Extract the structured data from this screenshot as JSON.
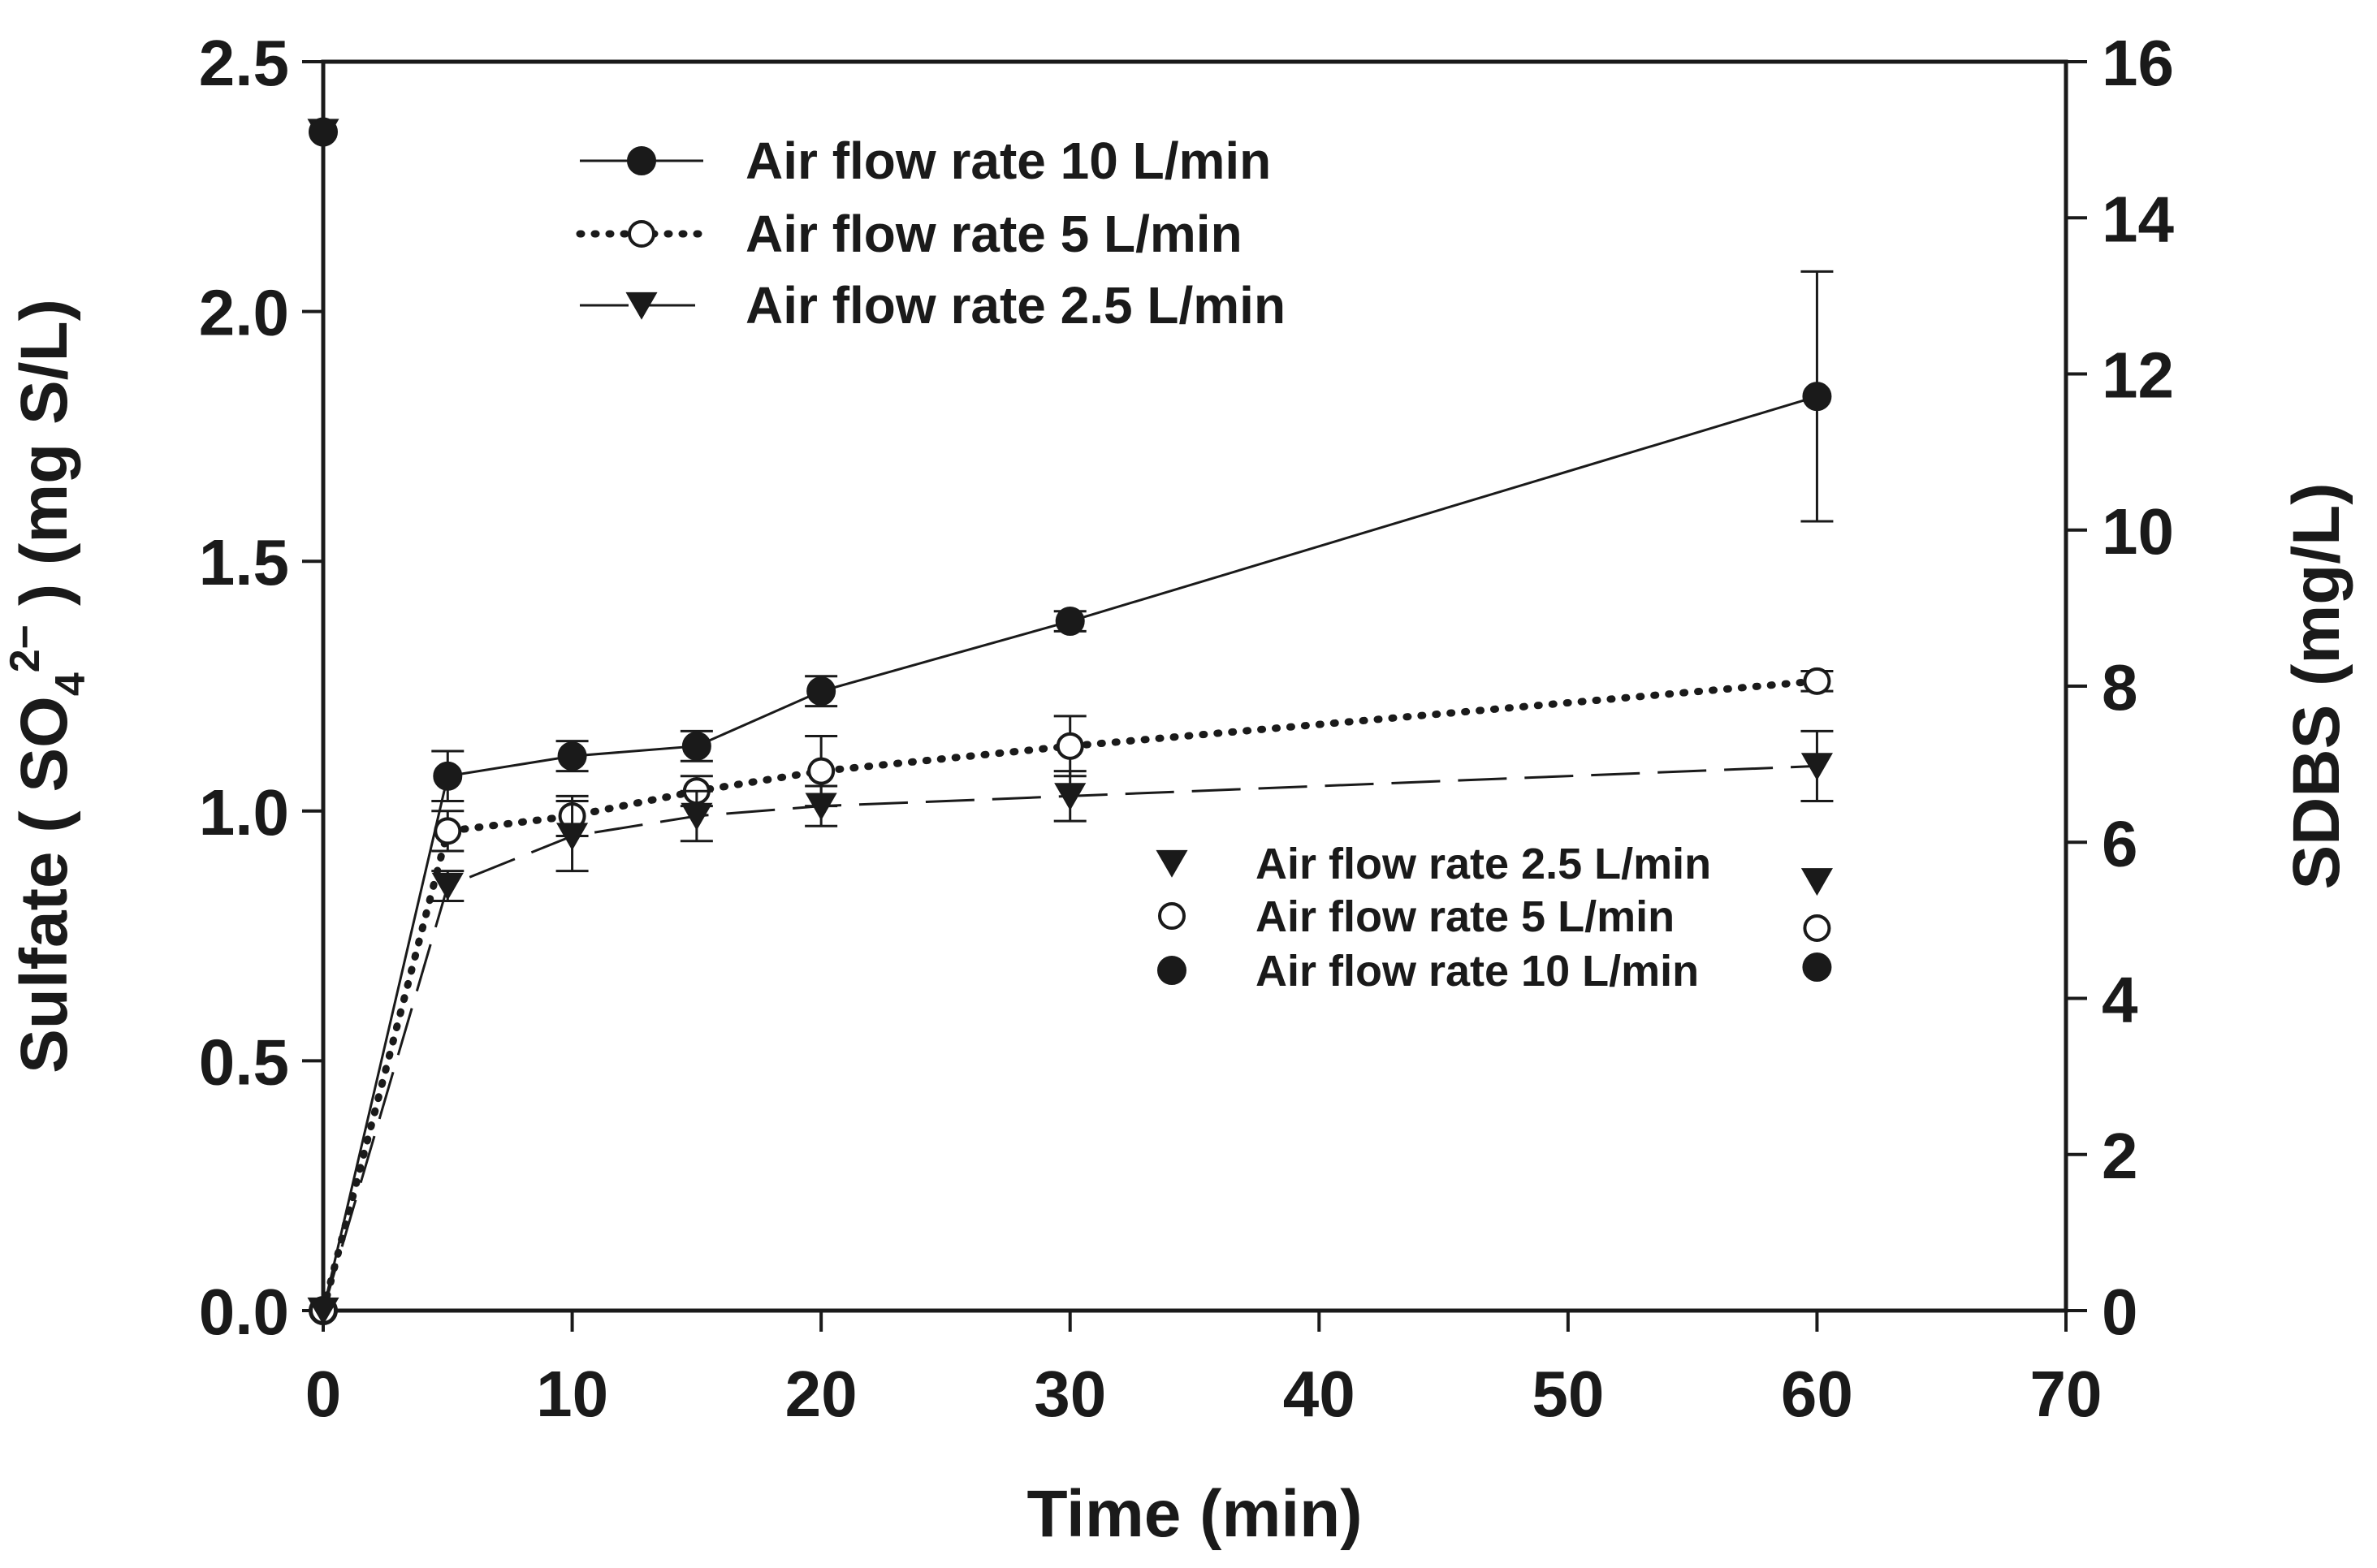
{
  "chart_data": {
    "type": "line",
    "xlabel": "Time (min)",
    "ylabel": "Sulfate ( SO42− ) (mg S/L)",
    "ylabel_parts": {
      "prefix": "Sulfate ( ",
      "chem_base": "SO",
      "chem_sub": "4",
      "chem_sup": "2−",
      "suffix": " ) (mg S/L)"
    },
    "y2label": "SDBS (mg/L)",
    "xlim": [
      0,
      70
    ],
    "ylim": [
      0,
      2.5
    ],
    "y2lim": [
      0,
      16
    ],
    "xticks": [
      "0",
      "10",
      "20",
      "30",
      "40",
      "50",
      "60",
      "70"
    ],
    "yticks": [
      "0.0",
      "0.5",
      "1.0",
      "1.5",
      "2.0",
      "2.5"
    ],
    "y2ticks": [
      "0",
      "2",
      "4",
      "6",
      "8",
      "10",
      "12",
      "14",
      "16"
    ],
    "legend_position": "top-left",
    "legend2_position": "center-right",
    "series": [
      {
        "name": "Air flow rate 10 L/min",
        "marker": "filled-circle",
        "line": "solid",
        "x": [
          0,
          5,
          10,
          15,
          20,
          30,
          60
        ],
        "y": [
          0,
          1.07,
          1.11,
          1.13,
          1.24,
          1.38,
          1.83
        ],
        "err": [
          0,
          0.05,
          0.03,
          0.03,
          0.03,
          0.02,
          0.25
        ]
      },
      {
        "name": "Air flow rate  5  L/min",
        "marker": "open-circle",
        "line": "dotted",
        "x": [
          0,
          5,
          10,
          15,
          20,
          30,
          60
        ],
        "y": [
          0,
          0.96,
          0.99,
          1.04,
          1.08,
          1.13,
          1.26
        ],
        "err": [
          0,
          0.04,
          0.04,
          0.03,
          0.07,
          0.06,
          0.02
        ]
      },
      {
        "name": "Air flow rate 2.5 L/min",
        "marker": "filled-triangle-down",
        "line": "dashed",
        "x": [
          0,
          5,
          10,
          15,
          20,
          30,
          60
        ],
        "y": [
          0,
          0.85,
          0.95,
          0.99,
          1.01,
          1.03,
          1.09
        ],
        "err": [
          0,
          0.03,
          0.07,
          0.05,
          0.04,
          0.05,
          0.07
        ]
      }
    ],
    "sdbs_series": [
      {
        "name": "Air flow rate 2.5 L/min",
        "marker": "filled-triangle-down",
        "x": [
          0,
          60
        ],
        "y": [
          15.1,
          5.5
        ]
      },
      {
        "name": "Air flow rate 5 L/min",
        "marker": "open-circle",
        "x": [
          0,
          60
        ],
        "y": [
          15.1,
          4.9
        ]
      },
      {
        "name": "Air flow rate 10 L/min",
        "marker": "filled-circle",
        "x": [
          0,
          60
        ],
        "y": [
          15.1,
          4.4
        ]
      }
    ]
  }
}
